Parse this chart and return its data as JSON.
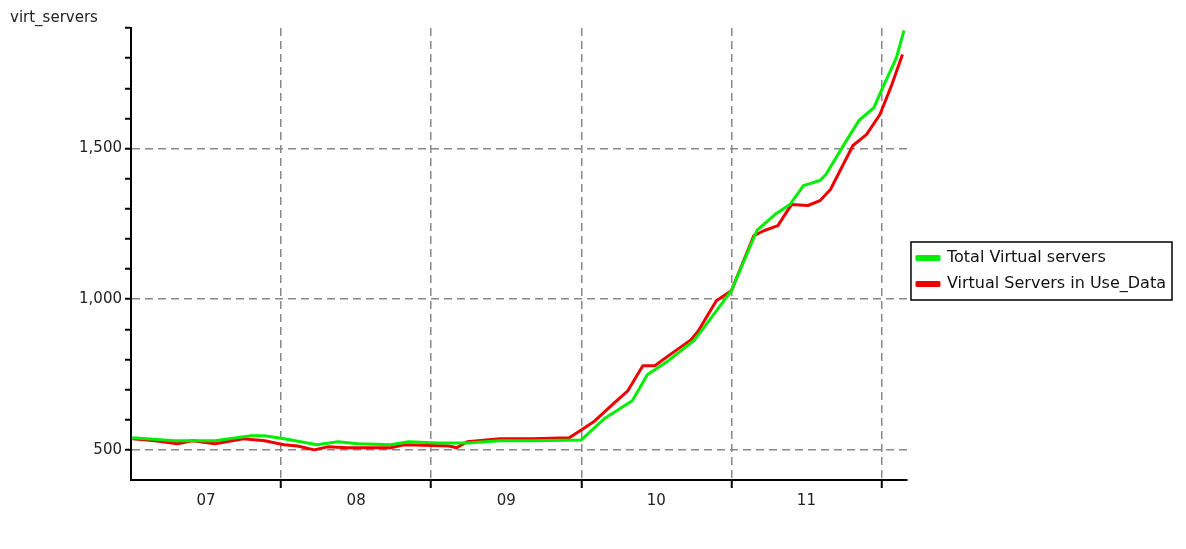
{
  "chart_data": {
    "type": "line",
    "ylabel": "virt_servers",
    "xlim": [
      7,
      12.17
    ],
    "xticks": [
      {
        "value": 7.5,
        "label": "07"
      },
      {
        "value": 8,
        "label": null
      },
      {
        "value": 8.5,
        "label": "08"
      },
      {
        "value": 9,
        "label": null
      },
      {
        "value": 9.5,
        "label": "09"
      },
      {
        "value": 10,
        "label": null
      },
      {
        "value": 10.5,
        "label": "10"
      },
      {
        "value": 11,
        "label": null
      },
      {
        "value": 11.5,
        "label": "11"
      },
      {
        "value": 12,
        "label": null
      }
    ],
    "ylim": [
      400,
      1900
    ],
    "yticks": [
      {
        "value": 500,
        "label": "500"
      },
      {
        "value": 600,
        "label": null
      },
      {
        "value": 700,
        "label": null
      },
      {
        "value": 800,
        "label": null
      },
      {
        "value": 900,
        "label": null
      },
      {
        "value": 1000,
        "label": "1,000"
      },
      {
        "value": 1100,
        "label": null
      },
      {
        "value": 1200,
        "label": null
      },
      {
        "value": 1300,
        "label": null
      },
      {
        "value": 1400,
        "label": null
      },
      {
        "value": 1500,
        "label": "1,500"
      },
      {
        "value": 1600,
        "label": null
      },
      {
        "value": 1700,
        "label": null
      },
      {
        "value": 1800,
        "label": null
      },
      {
        "value": 1900,
        "label": null
      }
    ],
    "grid": true,
    "legend": "right",
    "marker": "none",
    "line_style": "solid",
    "series": [
      {
        "name": "Total Virtual servers",
        "color": "#00ee00",
        "x": [
          7.01,
          7.29,
          7.56,
          7.8,
          7.89,
          8.02,
          8.24,
          8.38,
          8.51,
          8.73,
          8.85,
          9.04,
          9.24,
          9.46,
          9.68,
          10,
          10.16,
          10.34,
          10.44,
          10.58,
          10.75,
          10.88,
          11,
          11.17,
          11.29,
          11.39,
          11.48,
          11.59,
          11.63,
          11.75,
          11.85,
          11.95,
          12,
          12.1,
          12.15
        ],
        "values": [
          540,
          530,
          530,
          547,
          547,
          537,
          517,
          527,
          520,
          517,
          527,
          523,
          523,
          530,
          530,
          533,
          606,
          663,
          749,
          796,
          862,
          948,
          1028,
          1228,
          1281,
          1314,
          1377,
          1394,
          1414,
          1513,
          1593,
          1636,
          1693,
          1802,
          1892
        ]
      },
      {
        "name": "Virtual Servers in Use_Data",
        "color": "#ee0000",
        "x": [
          7.01,
          7.16,
          7.31,
          7.41,
          7.56,
          7.75,
          7.89,
          8.02,
          8.11,
          8.22,
          8.31,
          8.44,
          8.73,
          8.82,
          9.12,
          9.17,
          9.24,
          9.46,
          9.68,
          9.92,
          10,
          10.09,
          10.22,
          10.31,
          10.41,
          10.49,
          10.58,
          10.73,
          10.78,
          10.9,
          11,
          11.15,
          11.22,
          11.31,
          11.4,
          11.51,
          11.59,
          11.66,
          11.81,
          11.9,
          11.99,
          12.07,
          12.14
        ],
        "values": [
          537,
          530,
          520,
          530,
          520,
          537,
          530,
          517,
          513,
          500,
          510,
          507,
          507,
          517,
          513,
          507,
          527,
          537,
          537,
          540,
          566,
          596,
          656,
          696,
          779,
          779,
          812,
          865,
          895,
          995,
          1028,
          1211,
          1228,
          1244,
          1314,
          1311,
          1327,
          1364,
          1510,
          1546,
          1613,
          1713,
          1812
        ]
      }
    ]
  }
}
